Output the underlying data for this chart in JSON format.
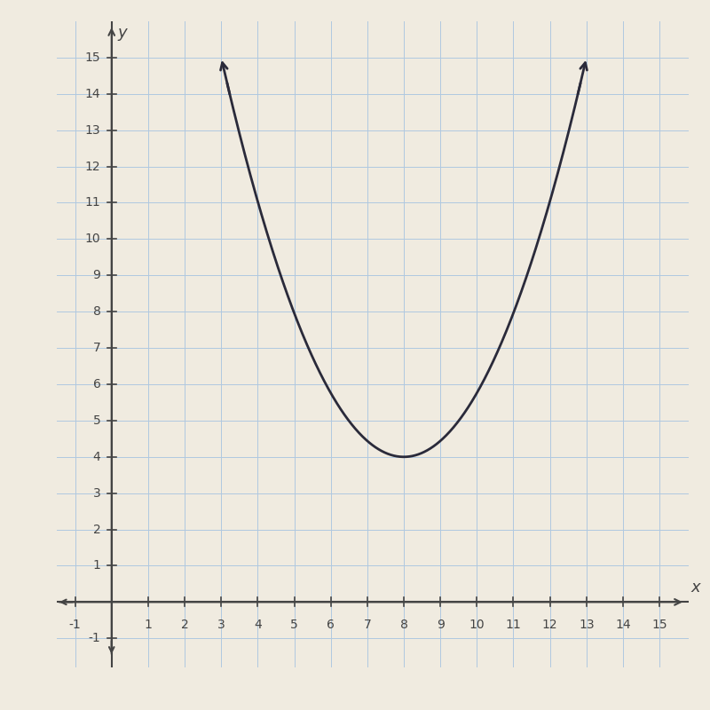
{
  "title": "",
  "xlabel": "x",
  "ylabel": "y",
  "xlim": [
    -1.5,
    15.8
  ],
  "ylim": [
    -1.8,
    16.0
  ],
  "xticks": [
    -1,
    1,
    2,
    3,
    4,
    5,
    6,
    7,
    8,
    9,
    10,
    11,
    12,
    13,
    14,
    15
  ],
  "yticks": [
    -1,
    1,
    2,
    3,
    4,
    5,
    6,
    7,
    8,
    9,
    10,
    11,
    12,
    13,
    14,
    15
  ],
  "vertex_x": 8.0,
  "vertex_y": 4.0,
  "a_coeff": 0.44,
  "curve_color": "#2a2a3a",
  "grid_color": "#b0c8e0",
  "axis_color": "#444444",
  "background_color": "#f0ebe0",
  "x_start": 3.0,
  "x_end": 13.0,
  "figsize": [
    8.0,
    8.0
  ],
  "dpi": 100
}
